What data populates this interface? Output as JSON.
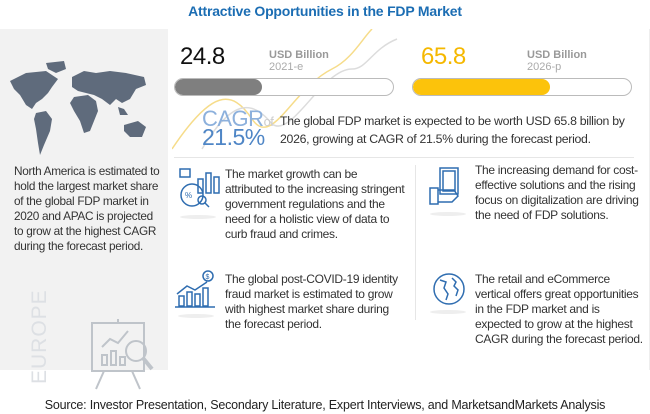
{
  "title": "Attractive Opportunities in the FDP Market",
  "left": {
    "text": "North America is estimated to hold the largest market share of the global FDP market in 2020 and APAC is projected to grow at the highest CAGR during the forecast period.",
    "region_label": "EUROPE"
  },
  "stats": {
    "start": {
      "value": "24.8",
      "unit": "USD Billion",
      "year": "2021-e",
      "fill_pct": 40,
      "color": "#7f7f7f"
    },
    "end": {
      "value": "65.8",
      "unit": "USD Billion",
      "year": "2026-p",
      "fill_pct": 63,
      "color": "#fcc30b"
    },
    "cagr_label": "CAGR",
    "cagr_of": "of",
    "cagr_value": "21.5%",
    "cagr_color": "#4f86c6",
    "description": "The global FDP market is expected to be worth USD 65.8 billion by 2026, growing at CAGR of 21.5% during the forecast period."
  },
  "insights": [
    {
      "icon": "analytics-report-icon",
      "text": "The market growth can be attributed to the increasing stringent government regulations and the need for a holistic view of data to curb fraud and crimes."
    },
    {
      "icon": "money-hand-icon",
      "text": "The increasing demand for cost-effective solutions and the rising focus on digitalization are driving the need of FDP solutions."
    },
    {
      "icon": "growth-chart-dollar-icon",
      "text": "The global post-COVID-19 identity  fraud market is estimated to grow with highest market share during the forecast period."
    },
    {
      "icon": "globe-icon",
      "text": "The retail and eCommerce vertical offers great opportunities in the FDP market and is expected to grow at the highest CAGR during the forecast period."
    }
  ],
  "source": "Source: Investor Presentation, Secondary Literature, Expert Interviews, and MarketsandMarkets Analysis"
}
